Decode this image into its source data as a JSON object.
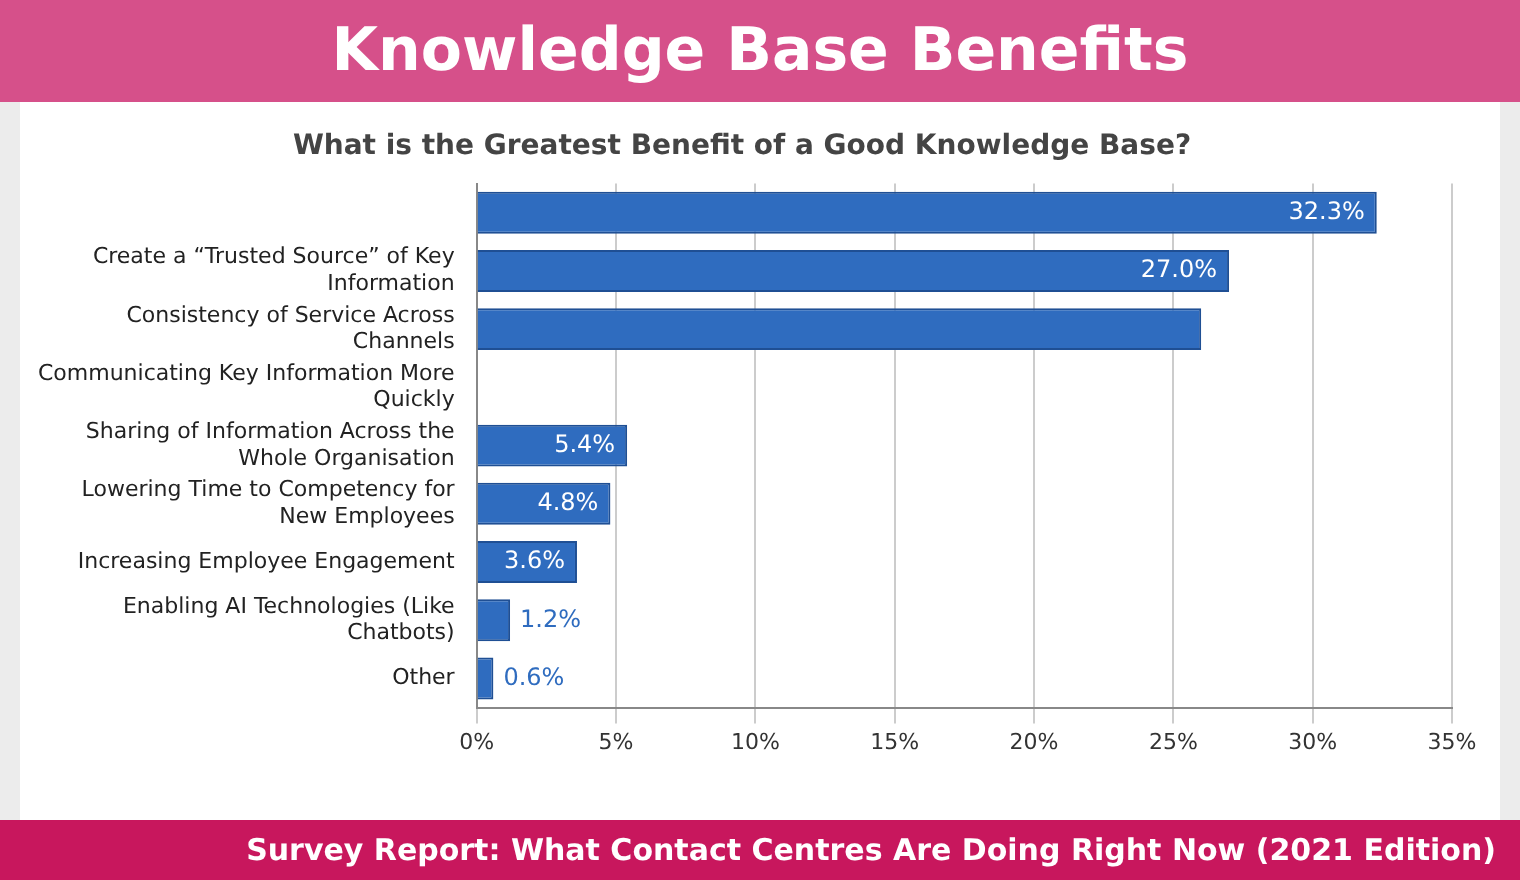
{
  "chart_data": {
    "type": "bar",
    "orientation": "horizontal",
    "title": "Knowledge Base Benefits",
    "subtitle": "What is the Greatest Benefit of a Good Knowledge Base?",
    "categories": [
      null,
      "Create a “Trusted Source” of Key Information",
      "Consistency of Service Across Channels",
      "Communicating Key Information More Quickly",
      "Sharing of Information Across the Whole Organisation",
      "Lowering Time to Competency for New Employees",
      "Increasing Employee Engagement",
      "Enabling AI Technologies (Like Chatbots)",
      "Other"
    ],
    "values": [
      32.3,
      27.0,
      26,
      null,
      5.4,
      4.8,
      3.6,
      1.2,
      0.6
    ],
    "value_labels": [
      "32.3%",
      "27.0%",
      null,
      null,
      "5.4%",
      "4.8%",
      "3.6%",
      "1.2%",
      "0.6%"
    ],
    "color": "#2f6cbf",
    "xlim": [
      0,
      35
    ],
    "xticks": [
      {
        "value": 0,
        "label": "0%"
      },
      {
        "value": 5,
        "label": "5%"
      },
      {
        "value": 10,
        "label": "10%"
      },
      {
        "value": 15,
        "label": "15%"
      },
      {
        "value": 20,
        "label": "20%"
      },
      {
        "value": 25,
        "label": "25%"
      },
      {
        "value": 30,
        "label": "30%"
      },
      {
        "value": 35,
        "label": "35%"
      }
    ],
    "grid": "x",
    "legend": false,
    "annotations": [
      "Survey Report: What Contact Centres Are Doing Right Now (2021 Edition)"
    ]
  }
}
